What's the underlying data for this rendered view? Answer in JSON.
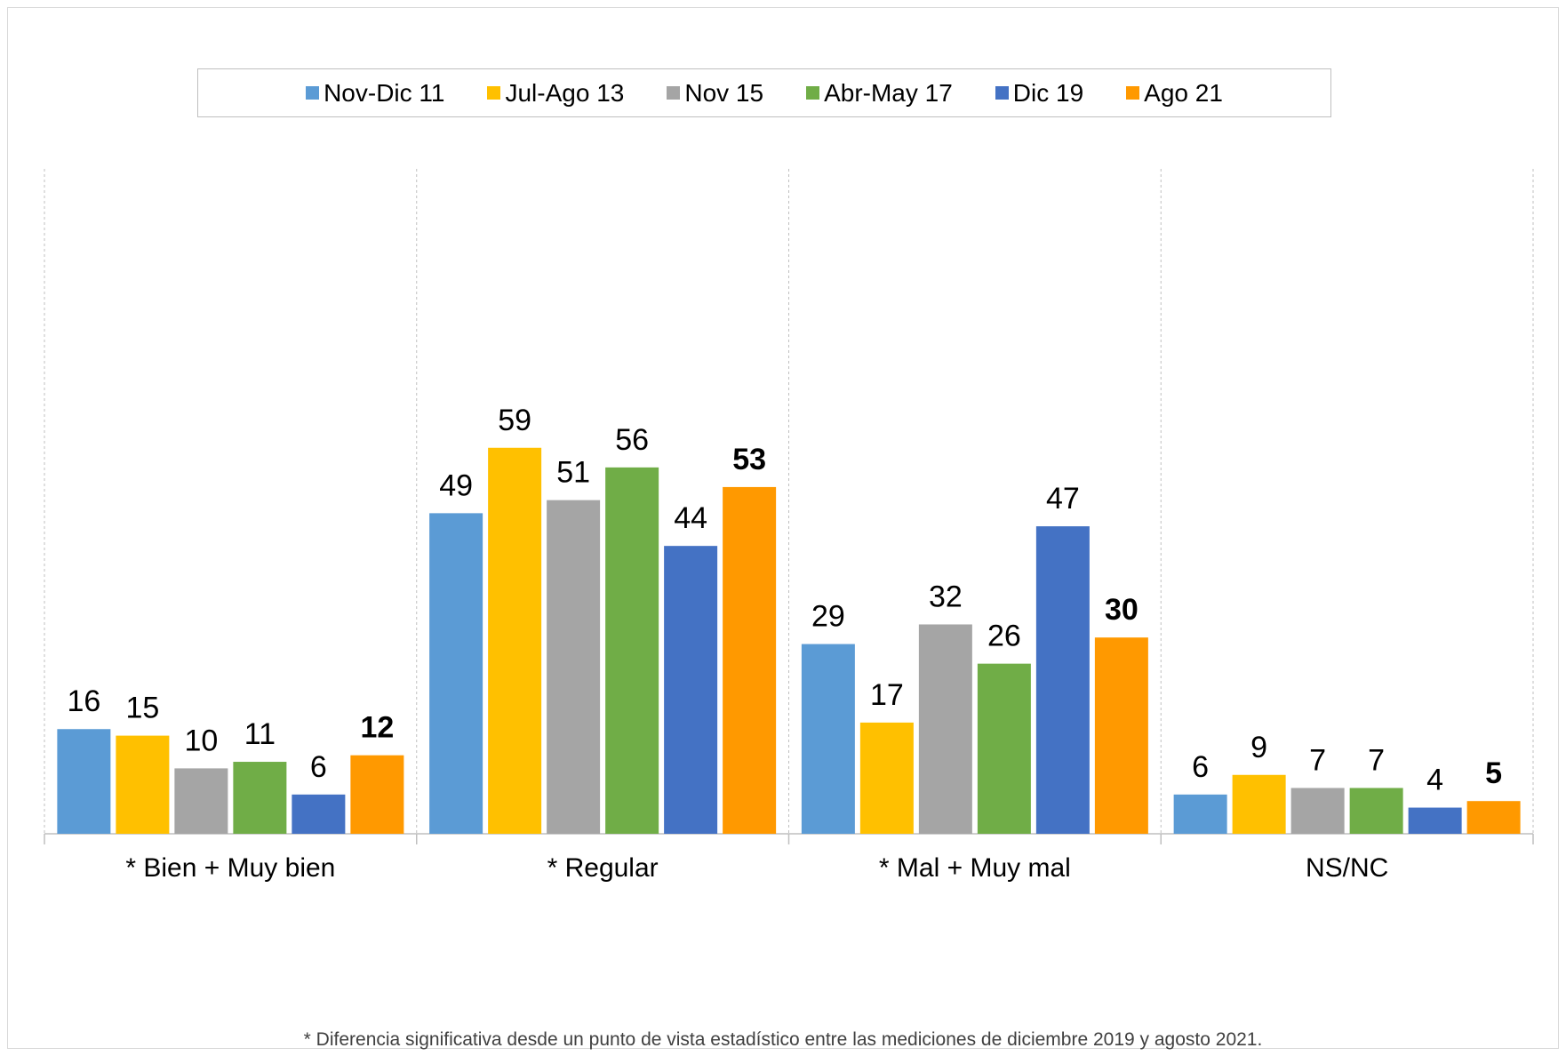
{
  "chart_data": {
    "type": "bar",
    "categories": [
      "* Bien + Muy bien",
      "* Regular",
      "* Mal + Muy mal",
      "NS/NC"
    ],
    "series": [
      {
        "name": "Nov-Dic 11",
        "color": "#5b9bd5",
        "values": [
          16,
          49,
          29,
          6
        ]
      },
      {
        "name": "Jul-Ago 13",
        "color": "#ffc000",
        "values": [
          15,
          59,
          17,
          9
        ]
      },
      {
        "name": "Nov 15",
        "color": "#a5a5a5",
        "values": [
          10,
          51,
          32,
          7
        ]
      },
      {
        "name": "Abr-May 17",
        "color": "#70ad47",
        "values": [
          11,
          56,
          26,
          7
        ]
      },
      {
        "name": "Dic 19",
        "color": "#4472c4",
        "values": [
          6,
          44,
          47,
          4
        ]
      },
      {
        "name": "Ago 21",
        "color": "#ff9900",
        "values": [
          12,
          53,
          30,
          5
        ],
        "bold_labels": true
      }
    ],
    "ylim": [
      0,
      100
    ],
    "legend_position": "top",
    "grid": "vertical-dashed-separators",
    "footnote": "* Diferencia significativa desde un punto de vista estadístico entre las mediciones de diciembre 2019 y agosto 2021."
  }
}
